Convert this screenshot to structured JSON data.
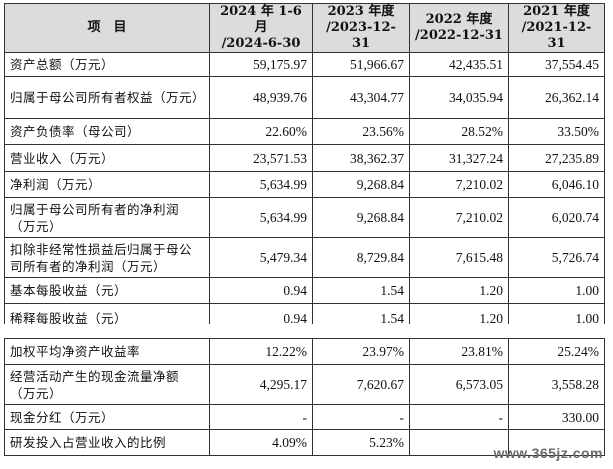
{
  "header": {
    "item": "项　目",
    "periods": [
      {
        "line1": "2024 年 1-6 月",
        "line2": "/2024-6-30"
      },
      {
        "line1": "2023 年度",
        "line2": "/2023-12-31"
      },
      {
        "line1": "2022 年度",
        "line2": "/2022-12-31"
      },
      {
        "line1": "2021 年度",
        "line2": "/2021-12-31"
      }
    ]
  },
  "rows_top": [
    {
      "label": "资产总额（万元）",
      "values": [
        "59,175.97",
        "51,966.67",
        "42,435.51",
        "37,554.45"
      ]
    },
    {
      "label": "归属于母公司所有者权益（万元）",
      "values": [
        "48,939.76",
        "43,304.77",
        "34,035.94",
        "26,362.14"
      ]
    },
    {
      "label": "资产负债率（母公司）",
      "values": [
        "22.60%",
        "23.56%",
        "28.52%",
        "33.50%"
      ]
    },
    {
      "label": "营业收入（万元）",
      "values": [
        "23,571.53",
        "38,362.37",
        "31,327.24",
        "27,235.89"
      ]
    },
    {
      "label": "净利润（万元）",
      "values": [
        "5,634.99",
        "9,268.84",
        "7,210.02",
        "6,046.10"
      ]
    },
    {
      "label": "归属于母公司所有者的净利润（万元）",
      "values": [
        "5,634.99",
        "9,268.84",
        "7,210.02",
        "6,020.74"
      ]
    },
    {
      "label": "扣除非经常性损益后归属于母公司所有者的净利润（万元）",
      "values": [
        "5,479.34",
        "8,729.84",
        "7,615.48",
        "5,726.74"
      ]
    },
    {
      "label": "基本每股收益（元）",
      "values": [
        "0.94",
        "1.54",
        "1.20",
        "1.00"
      ]
    },
    {
      "label": "稀释每股收益（元）",
      "values": [
        "0.94",
        "1.54",
        "1.20",
        "1.00"
      ]
    }
  ],
  "rows_bottom": [
    {
      "label": "加权平均净资产收益率",
      "values": [
        "12.22%",
        "23.97%",
        "23.81%",
        "25.24%"
      ]
    },
    {
      "label": "经营活动产生的现金流量净额（万元）",
      "values": [
        "4,295.17",
        "7,620.67",
        "6,573.05",
        "3,558.28"
      ]
    },
    {
      "label": "现金分红（万元）",
      "values": [
        "-",
        "-",
        "-",
        "330.00"
      ]
    },
    {
      "label": "研发投入占营业收入的比例",
      "values": [
        "4.09%",
        "5.23%",
        "",
        ""
      ]
    }
  ],
  "watermark": "www.365jz.com"
}
